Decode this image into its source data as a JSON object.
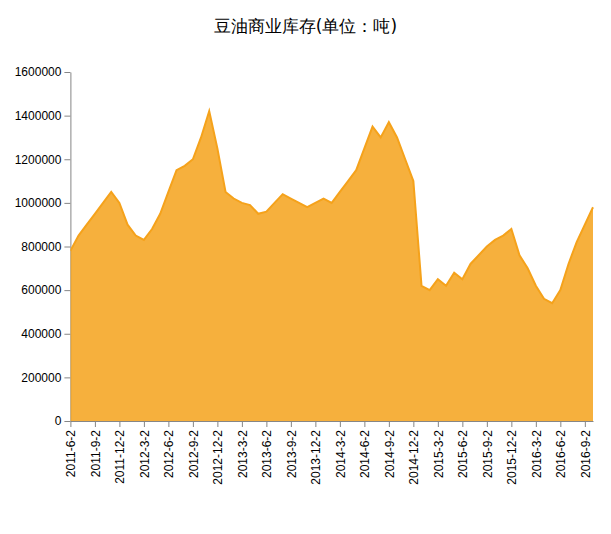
{
  "chart_data": {
    "type": "area",
    "title": "豆油商业库存(单位：吨)",
    "categories": [
      "2011-6-2",
      null,
      null,
      "2011-9-2",
      null,
      null,
      "2011-12-2",
      null,
      null,
      "2012-3-2",
      null,
      null,
      "2012-6-2",
      null,
      null,
      "2012-9-2",
      null,
      null,
      "2012-12-2",
      null,
      null,
      "2013-3-2",
      null,
      null,
      "2013-6-2",
      null,
      null,
      "2013-9-2",
      null,
      null,
      "2013-12-2",
      null,
      null,
      "2014-3-2",
      null,
      null,
      "2014-6-2",
      null,
      null,
      "2014-9-2",
      null,
      null,
      "2014-12-2",
      null,
      null,
      "2015-3-2",
      null,
      null,
      "2015-6-2",
      null,
      null,
      "2015-9-2",
      null,
      null,
      "2015-12-2",
      null,
      null,
      "2016-3-2",
      null,
      null,
      "2016-6-2",
      null,
      null,
      "2016-9-2",
      null
    ],
    "values": [
      780000,
      850000,
      900000,
      950000,
      1000000,
      1050000,
      1000000,
      900000,
      850000,
      830000,
      880000,
      950000,
      1050000,
      1150000,
      1170000,
      1200000,
      1300000,
      1420000,
      1250000,
      1050000,
      1020000,
      1000000,
      990000,
      950000,
      960000,
      1000000,
      1040000,
      1020000,
      1000000,
      980000,
      1000000,
      1020000,
      1000000,
      1050000,
      1100000,
      1150000,
      1250000,
      1350000,
      1300000,
      1370000,
      1300000,
      1200000,
      1100000,
      620000,
      600000,
      650000,
      620000,
      680000,
      650000,
      720000,
      760000,
      800000,
      830000,
      850000,
      880000,
      760000,
      700000,
      620000,
      560000,
      540000,
      600000,
      720000,
      820000,
      900000,
      980000
    ],
    "color": "#f5a21b",
    "ylim": [
      0,
      1600000
    ],
    "yticks": [
      0,
      200000,
      400000,
      600000,
      800000,
      1000000,
      1200000,
      1400000,
      1600000
    ],
    "grid": false
  }
}
